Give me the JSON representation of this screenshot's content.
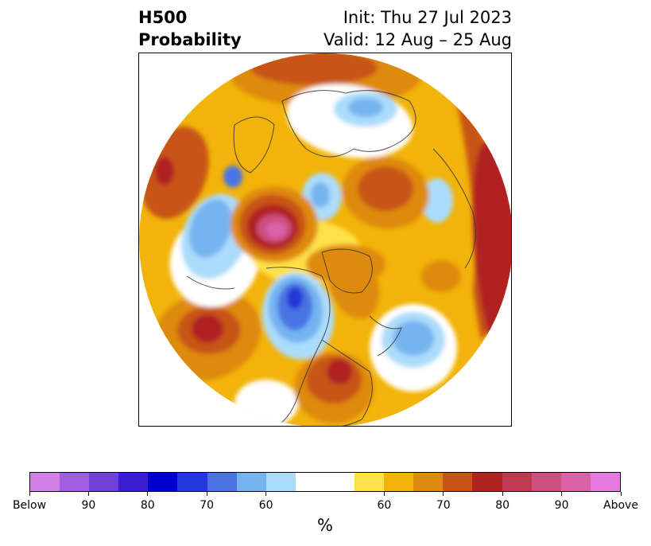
{
  "header": {
    "left_line1": "H500",
    "left_line2": "Probability",
    "right_line1": "Init: Thu 27 Jul 2023",
    "right_line2": "Valid: 12 Aug – 25 Aug"
  },
  "map": {
    "projection": "north-polar-stereographic",
    "colors": {
      "above_60": "#ffe04a",
      "above_65": "#f2b40a",
      "above_70": "#de8a10",
      "above_75": "#c85418",
      "above_80": "#b02420",
      "above_85": "#c03a50",
      "above_90": "#cc5080",
      "above_95": "#dc62a8",
      "below_60": "#acdcfb",
      "below_65": "#76b4f0",
      "below_70": "#4a74e4",
      "below_75": "#2438d8",
      "coastline": "#333333"
    }
  },
  "colorbar": {
    "colors": [
      "#d27fe8",
      "#a05ee3",
      "#7040d8",
      "#3a1ed0",
      "#0000cc",
      "#2436dc",
      "#4a74e4",
      "#76b4f0",
      "#acdcfb",
      "#ffffff",
      "#ffe04a",
      "#f2b40a",
      "#de8a10",
      "#c85418",
      "#b02420",
      "#c03a50",
      "#cc5080",
      "#dc62a8",
      "#e57be0"
    ],
    "tick_labels": [
      "Below",
      "90",
      "80",
      "70",
      "60",
      "60",
      "70",
      "80",
      "90",
      "Above"
    ],
    "unit_label": "%"
  }
}
